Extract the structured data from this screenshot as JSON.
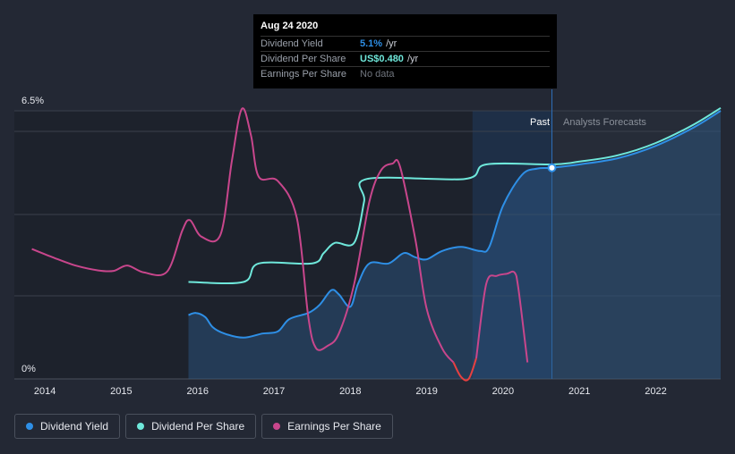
{
  "colors": {
    "dividend_yield": "#2e8fe6",
    "dividend_per_share": "#6fe8db",
    "earnings_per_share": "#c8468c",
    "negative": "#e84040",
    "background": "#232834"
  },
  "tooltip": {
    "date": "Aug 24 2020",
    "rows": [
      {
        "label": "Dividend Yield",
        "value": "5.1%",
        "unit": "/yr"
      },
      {
        "label": "Dividend Per Share",
        "value": "US$0.480",
        "unit": "/yr"
      },
      {
        "label": "Earnings Per Share",
        "value": "",
        "unit": "No data"
      }
    ]
  },
  "legend": [
    {
      "label": "Dividend Yield",
      "color": "#2e8fe6"
    },
    {
      "label": "Dividend Per Share",
      "color": "#6fe8db"
    },
    {
      "label": "Earnings Per Share",
      "color": "#c8468c"
    }
  ],
  "chart_data": {
    "type": "line",
    "title": "",
    "xlabel": "",
    "ylabel": "",
    "y_tick_labels": [
      "6.5%",
      "0%"
    ],
    "ylim": [
      0,
      6.5
    ],
    "xlim": [
      2013.6,
      2022.85
    ],
    "x_ticks": [
      2014,
      2015,
      2016,
      2017,
      2018,
      2019,
      2020,
      2021,
      2022
    ],
    "past_label": "Past",
    "forecast_label": "Analysts Forecasts",
    "past_end": 2020.64,
    "shaded_past_start": 2019.6,
    "grid": true,
    "legend_position": "bottom-left",
    "series": [
      {
        "name": "Dividend Yield",
        "unit": "%",
        "points": [
          [
            2015.88,
            1.55
          ],
          [
            2015.98,
            1.6
          ],
          [
            2016.1,
            1.5
          ],
          [
            2016.2,
            1.25
          ],
          [
            2016.35,
            1.1
          ],
          [
            2016.6,
            1.0
          ],
          [
            2016.85,
            1.1
          ],
          [
            2017.05,
            1.15
          ],
          [
            2017.2,
            1.45
          ],
          [
            2017.45,
            1.6
          ],
          [
            2017.6,
            1.8
          ],
          [
            2017.75,
            2.15
          ],
          [
            2017.85,
            2.05
          ],
          [
            2018.0,
            1.75
          ],
          [
            2018.1,
            2.3
          ],
          [
            2018.25,
            2.8
          ],
          [
            2018.5,
            2.8
          ],
          [
            2018.7,
            3.05
          ],
          [
            2018.85,
            2.95
          ],
          [
            2019.0,
            2.9
          ],
          [
            2019.2,
            3.1
          ],
          [
            2019.45,
            3.2
          ],
          [
            2019.7,
            3.1
          ],
          [
            2019.82,
            3.2
          ],
          [
            2020.0,
            4.2
          ],
          [
            2020.25,
            4.95
          ],
          [
            2020.45,
            5.1
          ],
          [
            2020.64,
            5.12
          ],
          [
            2021.0,
            5.2
          ],
          [
            2021.5,
            5.35
          ],
          [
            2022.0,
            5.65
          ],
          [
            2022.5,
            6.1
          ],
          [
            2022.85,
            6.5
          ]
        ]
      },
      {
        "name": "Dividend Per Share",
        "unit": "US$",
        "points": [
          [
            2015.88,
            2.35
          ],
          [
            2016.6,
            2.35
          ],
          [
            2016.8,
            2.8
          ],
          [
            2017.5,
            2.8
          ],
          [
            2017.65,
            3.05
          ],
          [
            2017.8,
            3.3
          ],
          [
            2018.05,
            3.3
          ],
          [
            2018.18,
            4.3
          ],
          [
            2018.22,
            4.85
          ],
          [
            2019.5,
            4.85
          ],
          [
            2019.78,
            5.2
          ],
          [
            2020.64,
            5.2
          ],
          [
            2021.0,
            5.27
          ],
          [
            2021.5,
            5.42
          ],
          [
            2022.0,
            5.72
          ],
          [
            2022.5,
            6.17
          ],
          [
            2022.85,
            6.57
          ]
        ]
      },
      {
        "name": "Earnings Per Share",
        "unit": "US$",
        "points": [
          [
            2013.83,
            3.15
          ],
          [
            2014.1,
            2.95
          ],
          [
            2014.4,
            2.75
          ],
          [
            2014.7,
            2.63
          ],
          [
            2014.9,
            2.62
          ],
          [
            2015.08,
            2.75
          ],
          [
            2015.3,
            2.58
          ],
          [
            2015.6,
            2.6
          ],
          [
            2015.8,
            3.6
          ],
          [
            2015.9,
            3.85
          ],
          [
            2016.05,
            3.45
          ],
          [
            2016.3,
            3.5
          ],
          [
            2016.45,
            5.3
          ],
          [
            2016.58,
            6.55
          ],
          [
            2016.7,
            5.9
          ],
          [
            2016.8,
            4.9
          ],
          [
            2017.05,
            4.8
          ],
          [
            2017.3,
            3.9
          ],
          [
            2017.45,
            1.5
          ],
          [
            2017.55,
            0.75
          ],
          [
            2017.7,
            0.8
          ],
          [
            2017.85,
            1.1
          ],
          [
            2018.05,
            2.3
          ],
          [
            2018.25,
            4.3
          ],
          [
            2018.4,
            5.05
          ],
          [
            2018.55,
            5.22
          ],
          [
            2018.65,
            5.15
          ],
          [
            2018.85,
            3.4
          ],
          [
            2019.0,
            1.7
          ],
          [
            2019.2,
            0.75
          ],
          [
            2019.35,
            0.4
          ],
          [
            2019.45,
            0.05
          ],
          [
            2019.55,
            0.0
          ],
          [
            2019.65,
            0.5
          ],
          [
            2019.78,
            2.3
          ],
          [
            2019.92,
            2.5
          ],
          [
            2020.05,
            2.55
          ],
          [
            2020.15,
            2.58
          ],
          [
            2020.2,
            2.2
          ],
          [
            2020.32,
            0.4
          ]
        ]
      }
    ]
  }
}
